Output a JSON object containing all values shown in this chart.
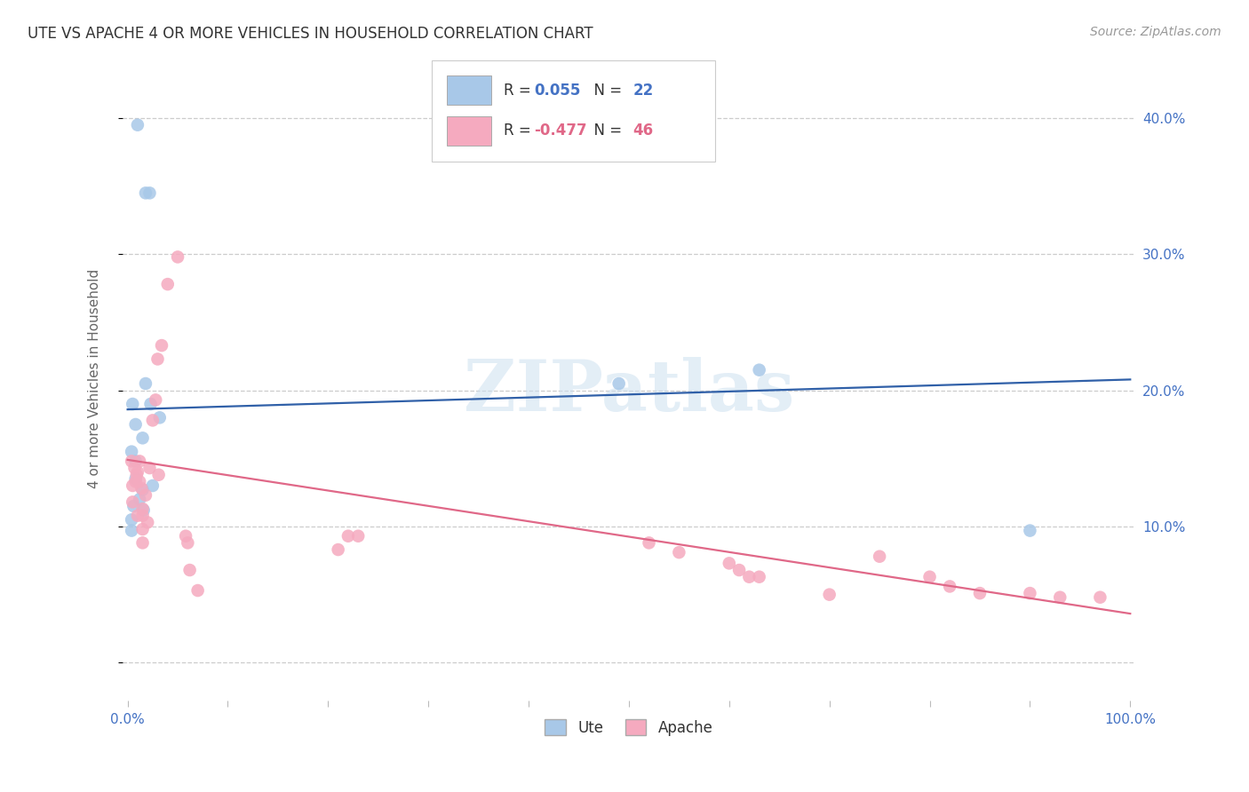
{
  "title": "UTE VS APACHE 4 OR MORE VEHICLES IN HOUSEHOLD CORRELATION CHART",
  "source": "Source: ZipAtlas.com",
  "ylabel": "4 or more Vehicles in Household",
  "ute_color": "#a8c8e8",
  "apache_color": "#f5aabf",
  "ute_line_color": "#3060a8",
  "apache_line_color": "#e06888",
  "watermark": "ZIPatlas",
  "bg_color": "#ffffff",
  "grid_color": "#cccccc",
  "tick_label_color": "#4472c4",
  "text_color": "#333333",
  "source_color": "#999999",
  "ute_x": [
    0.01,
    0.018,
    0.022,
    0.018,
    0.023,
    0.005,
    0.008,
    0.015,
    0.004,
    0.008,
    0.008,
    0.025,
    0.015,
    0.012,
    0.032,
    0.006,
    0.016,
    0.004,
    0.004,
    0.49,
    0.63,
    0.9
  ],
  "ute_y": [
    0.395,
    0.345,
    0.345,
    0.205,
    0.19,
    0.19,
    0.175,
    0.165,
    0.155,
    0.148,
    0.135,
    0.13,
    0.127,
    0.12,
    0.18,
    0.115,
    0.112,
    0.105,
    0.097,
    0.205,
    0.215,
    0.097
  ],
  "apache_x": [
    0.004,
    0.005,
    0.005,
    0.007,
    0.008,
    0.009,
    0.01,
    0.01,
    0.012,
    0.012,
    0.014,
    0.015,
    0.015,
    0.015,
    0.015,
    0.018,
    0.02,
    0.022,
    0.025,
    0.028,
    0.03,
    0.031,
    0.034,
    0.04,
    0.05,
    0.058,
    0.06,
    0.062,
    0.07,
    0.21,
    0.22,
    0.23,
    0.52,
    0.55,
    0.6,
    0.61,
    0.62,
    0.63,
    0.7,
    0.75,
    0.8,
    0.82,
    0.85,
    0.9,
    0.93,
    0.97
  ],
  "apache_y": [
    0.148,
    0.13,
    0.118,
    0.143,
    0.133,
    0.138,
    0.14,
    0.108,
    0.148,
    0.133,
    0.128,
    0.113,
    0.108,
    0.098,
    0.088,
    0.123,
    0.103,
    0.143,
    0.178,
    0.193,
    0.223,
    0.138,
    0.233,
    0.278,
    0.298,
    0.093,
    0.088,
    0.068,
    0.053,
    0.083,
    0.093,
    0.093,
    0.088,
    0.081,
    0.073,
    0.068,
    0.063,
    0.063,
    0.05,
    0.078,
    0.063,
    0.056,
    0.051,
    0.051,
    0.048,
    0.048
  ],
  "ute_slope": 0.022,
  "ute_intercept": 0.186,
  "apache_slope": -0.113,
  "apache_intercept": 0.149,
  "xlim": [
    -0.005,
    1.005
  ],
  "ylim": [
    -0.028,
    0.445
  ],
  "yticks": [
    0.0,
    0.1,
    0.2,
    0.3,
    0.4
  ],
  "ytick_labels": [
    "",
    "10.0%",
    "20.0%",
    "30.0%",
    "40.0%"
  ],
  "xticks": [
    0.0,
    0.1,
    0.2,
    0.3,
    0.4,
    0.5,
    0.6,
    0.7,
    0.8,
    0.9,
    1.0
  ],
  "xtick_labels": [
    "0.0%",
    "",
    "",
    "",
    "",
    "",
    "",
    "",
    "",
    "",
    "100.0%"
  ],
  "marker_size": 110,
  "title_fontsize": 12,
  "source_fontsize": 10,
  "tick_fontsize": 11,
  "ylabel_fontsize": 11,
  "legend_fontsize": 12
}
